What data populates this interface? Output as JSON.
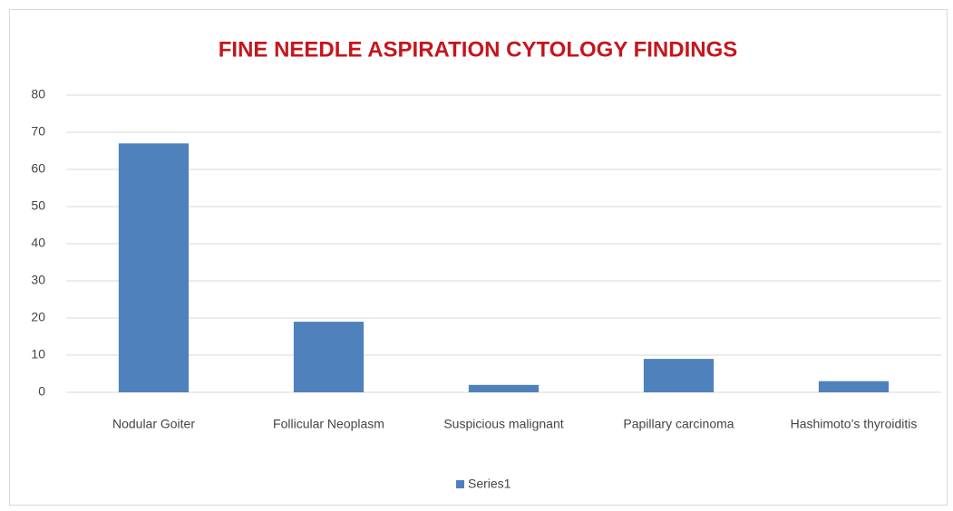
{
  "chart_data": {
    "type": "bar",
    "title": "FINE NEEDLE ASPIRATION CYTOLOGY FINDINGS",
    "categories": [
      "Nodular Goiter",
      "Follicular Neoplasm",
      "Suspicious malignant",
      "Papillary carcinoma",
      "Hashimoto’s thyroiditis"
    ],
    "series": [
      {
        "name": "Series1",
        "color": "#4f81bd",
        "values": [
          67,
          19,
          2,
          9,
          3
        ]
      }
    ],
    "ylim": [
      0,
      80
    ],
    "yticks": [
      0,
      10,
      20,
      30,
      40,
      50,
      60,
      70,
      80
    ],
    "grid": true,
    "legend": "bottom"
  }
}
